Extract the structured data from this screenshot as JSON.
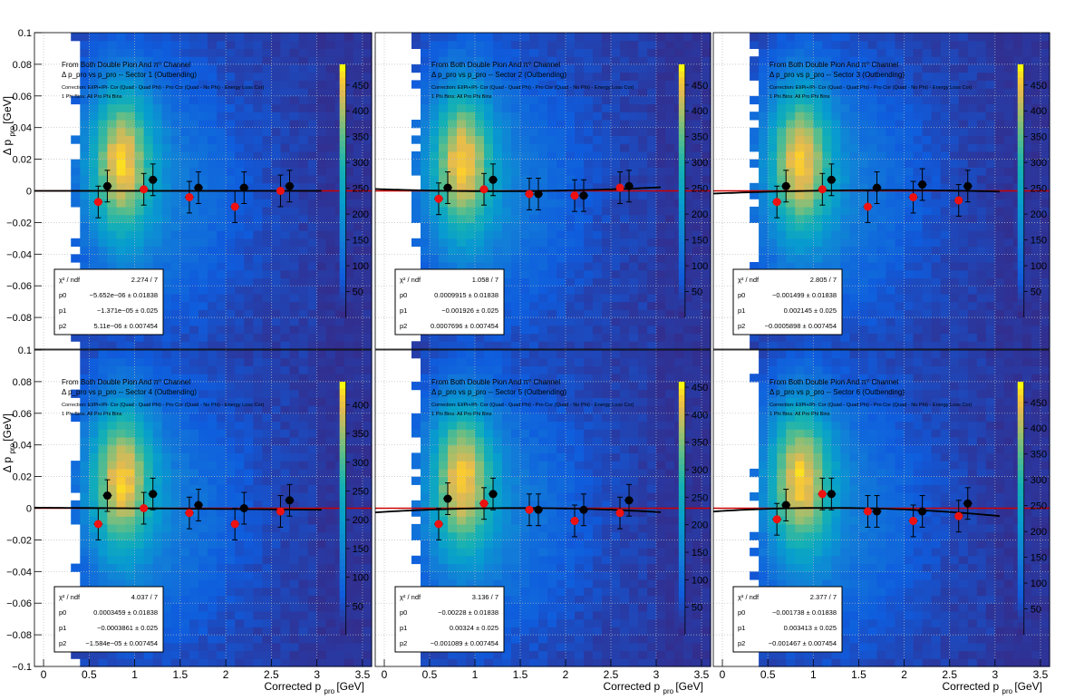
{
  "figure": {
    "x_axis_label": "Corrected p",
    "x_axis_sub": "pro",
    "x_axis_unit": "[GeV]",
    "y_axis_label": "Δ p",
    "y_axis_sub": "pro",
    "y_axis_unit": "[GeV]",
    "colors": {
      "fit_red": "#cc0000",
      "data_black": "#000000",
      "point_red": "#ee1111"
    }
  },
  "chart_data": [
    {
      "type": "heatmap",
      "panel": "sector-1",
      "title_line1": "From Both Double Pion And π⁰ Channel",
      "title_line2": "Δ p_pro vs p_pro -- Sector 1 (Outbending)",
      "title_line3": "Correction: El/Pi+/Pi- Cor (Quad - Quad Phi) - Pro Cor (Quad - No Phi) - Energy Loss Cor)",
      "title_line4": "1 Phi Bins: All Pro Phi Bins",
      "x_ticks": [
        "0",
        "0.5",
        "1",
        "1.5",
        "2",
        "2.5",
        "3",
        "3.5"
      ],
      "y_ticks": [
        "−0.1",
        "−0.08",
        "−0.06",
        "−0.04",
        "−0.02",
        "0",
        "0.02",
        "0.04",
        "0.06",
        "0.08",
        "0.1"
      ],
      "xlim": [
        -0.1,
        3.6
      ],
      "ylim": [
        -0.1,
        0.1
      ],
      "z_ticks": [
        "50",
        "100",
        "150",
        "200",
        "250",
        "300",
        "350",
        "400",
        "450"
      ],
      "zmax": 490,
      "stats": [
        [
          "χ² / ndf",
          "2.274 / 7"
        ],
        [
          "p0",
          "−5.652e−06 ± 0.01838"
        ],
        [
          "p1",
          "−1.371e−05 ± 0.025"
        ],
        [
          "p2",
          "5.11e−06 ± 0.007454"
        ]
      ],
      "black_points": [
        {
          "x": 0.7,
          "y": 0.003,
          "e": 0.01
        },
        {
          "x": 1.2,
          "y": 0.007,
          "e": 0.01
        },
        {
          "x": 1.7,
          "y": 0.002,
          "e": 0.01
        },
        {
          "x": 2.2,
          "y": 0.002,
          "e": 0.01
        },
        {
          "x": 2.7,
          "y": 0.003,
          "e": 0.01
        }
      ],
      "red_points": [
        {
          "x": 0.6,
          "y": -0.007,
          "e": 0.01
        },
        {
          "x": 1.1,
          "y": 0.001,
          "e": 0.01
        },
        {
          "x": 1.6,
          "y": -0.004,
          "e": 0.01
        },
        {
          "x": 2.1,
          "y": -0.01,
          "e": 0.01
        },
        {
          "x": 2.6,
          "y": 0.0,
          "e": 0.01
        }
      ],
      "black_fit": [
        0.0,
        0.0,
        0.0
      ]
    },
    {
      "type": "heatmap",
      "panel": "sector-2",
      "title_line1": "From Both Double Pion And π⁰ Channel",
      "title_line2": "Δ p_pro vs p_pro -- Sector 2 (Outbending)",
      "title_line3": "Correction: El/Pi+/Pi- Cor (Quad - Quad Phi) - Pro Cor (Quad - No Phi) - Energy Loss Cor)",
      "title_line4": "1 Phi Bins: All Pro Phi Bins",
      "x_ticks": [
        "0",
        "0.5",
        "1",
        "1.5",
        "2",
        "2.5",
        "3",
        "3.5"
      ],
      "xlim": [
        -0.1,
        3.6
      ],
      "ylim": [
        -0.1,
        0.1
      ],
      "z_ticks": [
        "50",
        "100",
        "150",
        "200",
        "250",
        "300",
        "350",
        "400",
        "450"
      ],
      "zmax": 490,
      "stats": [
        [
          "χ² / ndf",
          "1.058 / 7"
        ],
        [
          "p0",
          "0.0009915 ± 0.01838"
        ],
        [
          "p1",
          "−0.001926 ± 0.025"
        ],
        [
          "p2",
          "0.0007696 ± 0.007454"
        ]
      ],
      "black_points": [
        {
          "x": 0.7,
          "y": 0.002,
          "e": 0.01
        },
        {
          "x": 1.2,
          "y": 0.007,
          "e": 0.01
        },
        {
          "x": 1.7,
          "y": -0.002,
          "e": 0.01
        },
        {
          "x": 2.2,
          "y": -0.003,
          "e": 0.01
        },
        {
          "x": 2.7,
          "y": 0.003,
          "e": 0.01
        }
      ],
      "red_points": [
        {
          "x": 0.6,
          "y": -0.005,
          "e": 0.01
        },
        {
          "x": 1.1,
          "y": 0.001,
          "e": 0.01
        },
        {
          "x": 1.6,
          "y": -0.002,
          "e": 0.01
        },
        {
          "x": 2.1,
          "y": -0.003,
          "e": 0.01
        },
        {
          "x": 2.6,
          "y": 0.002,
          "e": 0.01
        }
      ],
      "black_fit": [
        0.0009915,
        -0.001926,
        0.0007696
      ]
    },
    {
      "type": "heatmap",
      "panel": "sector-3",
      "title_line1": "From Both Double Pion And π⁰ Channel",
      "title_line2": "Δ p_pro vs p_pro -- Sector 3 (Outbending)",
      "title_line3": "Correction: El/Pi+/Pi- Cor (Quad - Quad Phi) - Pro Cor (Quad - No Phi) - Energy Loss Cor)",
      "title_line4": "1 Phi Bins: All Pro Phi Bins",
      "x_ticks": [
        "0",
        "0.5",
        "1",
        "1.5",
        "2",
        "2.5",
        "3",
        "3.5"
      ],
      "xlim": [
        -0.1,
        3.6
      ],
      "ylim": [
        -0.1,
        0.1
      ],
      "z_ticks": [
        "50",
        "100",
        "150",
        "200",
        "250",
        "300",
        "350",
        "400",
        "450"
      ],
      "zmax": 490,
      "stats": [
        [
          "χ² / ndf",
          "2.805 / 7"
        ],
        [
          "p0",
          "−0.001499 ± 0.01838"
        ],
        [
          "p1",
          "0.002145 ± 0.025"
        ],
        [
          "p2",
          "−0.0005898 ± 0.007454"
        ]
      ],
      "black_points": [
        {
          "x": 0.7,
          "y": 0.003,
          "e": 0.01
        },
        {
          "x": 1.2,
          "y": 0.007,
          "e": 0.01
        },
        {
          "x": 1.7,
          "y": 0.002,
          "e": 0.01
        },
        {
          "x": 2.2,
          "y": 0.004,
          "e": 0.01
        },
        {
          "x": 2.7,
          "y": 0.003,
          "e": 0.01
        }
      ],
      "red_points": [
        {
          "x": 0.6,
          "y": -0.007,
          "e": 0.01
        },
        {
          "x": 1.1,
          "y": 0.001,
          "e": 0.01
        },
        {
          "x": 1.6,
          "y": -0.01,
          "e": 0.01
        },
        {
          "x": 2.1,
          "y": -0.004,
          "e": 0.01
        },
        {
          "x": 2.6,
          "y": -0.006,
          "e": 0.01
        }
      ],
      "black_fit": [
        -0.001499,
        0.002145,
        -0.0005898
      ]
    },
    {
      "type": "heatmap",
      "panel": "sector-4",
      "title_line1": "From Both Double Pion And π⁰ Channel",
      "title_line2": "Δ p_pro vs p_pro -- Sector 4 (Outbending)",
      "title_line3": "Correction: El/Pi+/Pi- Cor (Quad - Quad Phi) - Pro Cor (Quad - No Phi) - Energy Loss Cor)",
      "title_line4": "1 Phi Bins: All Pro Phi Bins",
      "x_ticks": [
        "0",
        "0.5",
        "1",
        "1.5",
        "2",
        "2.5",
        "3",
        "3.5"
      ],
      "xlim": [
        -0.1,
        3.6
      ],
      "ylim": [
        -0.1,
        0.1
      ],
      "z_ticks": [
        "50",
        "100",
        "150",
        "200",
        "250",
        "300",
        "350",
        "400"
      ],
      "zmax": 440,
      "stats": [
        [
          "χ² / ndf",
          "4.037 / 7"
        ],
        [
          "p0",
          "0.0003459 ± 0.01838"
        ],
        [
          "p1",
          "−0.0003861 ± 0.025"
        ],
        [
          "p2",
          "−1.584e−05 ± 0.007454"
        ]
      ],
      "black_points": [
        {
          "x": 0.7,
          "y": 0.008,
          "e": 0.01
        },
        {
          "x": 1.2,
          "y": 0.009,
          "e": 0.01
        },
        {
          "x": 1.7,
          "y": 0.002,
          "e": 0.01
        },
        {
          "x": 2.2,
          "y": 0.0,
          "e": 0.01
        },
        {
          "x": 2.7,
          "y": 0.005,
          "e": 0.01
        }
      ],
      "red_points": [
        {
          "x": 0.6,
          "y": -0.01,
          "e": 0.01
        },
        {
          "x": 1.1,
          "y": 0.0,
          "e": 0.01
        },
        {
          "x": 1.6,
          "y": -0.003,
          "e": 0.01
        },
        {
          "x": 2.1,
          "y": -0.01,
          "e": 0.01
        },
        {
          "x": 2.6,
          "y": -0.002,
          "e": 0.01
        }
      ],
      "black_fit": [
        0.0003459,
        -0.0003861,
        -1.584e-05
      ]
    },
    {
      "type": "heatmap",
      "panel": "sector-5",
      "title_line1": "From Both Double Pion And π⁰ Channel",
      "title_line2": "Δ p_pro vs p_pro -- Sector 5 (Outbending)",
      "title_line3": "Correction: El/Pi+/Pi- Cor (Quad - Quad Phi) - Pro Cor (Quad - No Phi) - Energy Loss Cor)",
      "title_line4": "1 Phi Bins: All Pro Phi Bins",
      "x_ticks": [
        "0",
        "0.5",
        "1",
        "1.5",
        "2",
        "2.5",
        "3",
        "3.5"
      ],
      "xlim": [
        -0.1,
        3.6
      ],
      "ylim": [
        -0.1,
        0.1
      ],
      "z_ticks": [
        "50",
        "100",
        "150",
        "200",
        "250",
        "300",
        "350",
        "400",
        "450"
      ],
      "zmax": 460,
      "stats": [
        [
          "χ² / ndf",
          "3.136 / 7"
        ],
        [
          "p0",
          "−0.00228 ± 0.01838"
        ],
        [
          "p1",
          "0.00324 ± 0.025"
        ],
        [
          "p2",
          "−0.001089 ± 0.007454"
        ]
      ],
      "black_points": [
        {
          "x": 0.7,
          "y": 0.006,
          "e": 0.01
        },
        {
          "x": 1.2,
          "y": 0.009,
          "e": 0.01
        },
        {
          "x": 1.7,
          "y": -0.001,
          "e": 0.01
        },
        {
          "x": 2.2,
          "y": -0.001,
          "e": 0.01
        },
        {
          "x": 2.7,
          "y": 0.005,
          "e": 0.01
        }
      ],
      "red_points": [
        {
          "x": 0.6,
          "y": -0.01,
          "e": 0.01
        },
        {
          "x": 1.1,
          "y": 0.003,
          "e": 0.01
        },
        {
          "x": 1.6,
          "y": -0.001,
          "e": 0.01
        },
        {
          "x": 2.1,
          "y": -0.008,
          "e": 0.01
        },
        {
          "x": 2.6,
          "y": -0.003,
          "e": 0.01
        }
      ],
      "black_fit": [
        -0.00228,
        0.00324,
        -0.001089
      ]
    },
    {
      "type": "heatmap",
      "panel": "sector-6",
      "title_line1": "From Both Double Pion And π⁰ Channel",
      "title_line2": "Δ p_pro vs p_pro -- Sector 6 (Outbending)",
      "title_line3": "Correction: El/Pi+/Pi- Cor (Quad - Quad Phi) - Pro Cor (Quad - No Phi) - Energy Loss Cor)",
      "title_line4": "1 Phi Bins: All Pro Phi Bins",
      "x_ticks": [
        "0",
        "0.5",
        "1",
        "1.5",
        "2",
        "2.5",
        "3",
        "3.5"
      ],
      "xlim": [
        -0.1,
        3.6
      ],
      "ylim": [
        -0.1,
        0.1
      ],
      "z_ticks": [
        "50",
        "100",
        "150",
        "200",
        "250",
        "300",
        "350",
        "400",
        "450"
      ],
      "zmax": 490,
      "stats": [
        [
          "χ² / ndf",
          "2.377 / 7"
        ],
        [
          "p0",
          "−0.001738 ± 0.01838"
        ],
        [
          "p1",
          "0.003413 ± 0.025"
        ],
        [
          "p2",
          "−0.001467 ± 0.007454"
        ]
      ],
      "black_points": [
        {
          "x": 0.7,
          "y": 0.002,
          "e": 0.01
        },
        {
          "x": 1.2,
          "y": 0.009,
          "e": 0.01
        },
        {
          "x": 1.7,
          "y": -0.002,
          "e": 0.01
        },
        {
          "x": 2.2,
          "y": -0.002,
          "e": 0.01
        },
        {
          "x": 2.7,
          "y": 0.003,
          "e": 0.01
        }
      ],
      "red_points": [
        {
          "x": 0.6,
          "y": -0.007,
          "e": 0.01
        },
        {
          "x": 1.1,
          "y": 0.009,
          "e": 0.01
        },
        {
          "x": 1.6,
          "y": -0.002,
          "e": 0.01
        },
        {
          "x": 2.1,
          "y": -0.008,
          "e": 0.01
        },
        {
          "x": 2.6,
          "y": -0.005,
          "e": 0.01
        }
      ],
      "black_fit": [
        -0.001738,
        0.003413,
        -0.001467
      ]
    }
  ]
}
